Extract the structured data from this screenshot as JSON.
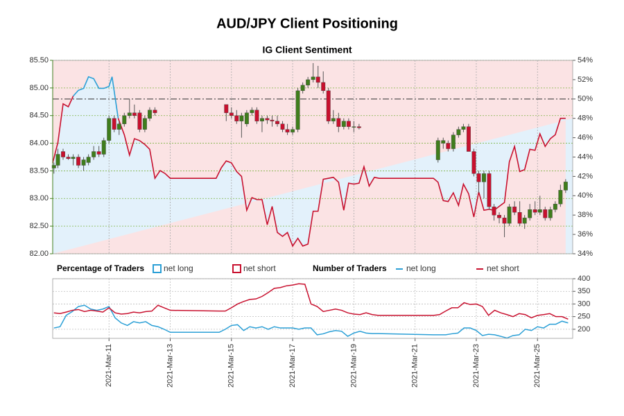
{
  "chart_data": [
    {
      "type": "candlestick",
      "title": "AUD/JPY Client Positioning",
      "subtitle": "IG Client Sentiment",
      "xlim": [
        9.16,
        26.15
      ],
      "ylim": [
        82,
        85.5
      ],
      "yticks": [
        {
          "value": 82,
          "label": "82.00"
        },
        {
          "value": 82.5,
          "label": "82.50"
        },
        {
          "value": 83,
          "label": "83.00"
        },
        {
          "value": 83.5,
          "label": "83.50"
        },
        {
          "value": 84,
          "label": "84.00"
        },
        {
          "value": 84.5,
          "label": "84.50"
        },
        {
          "value": 85,
          "label": "85.00"
        },
        {
          "value": 85.5,
          "label": "85.50"
        }
      ],
      "y2lim": [
        34,
        54
      ],
      "y2ticks": [
        {
          "value": 34,
          "label": "34%"
        },
        {
          "value": 36,
          "label": "36%"
        },
        {
          "value": 38,
          "label": "38%"
        },
        {
          "value": 40,
          "label": "40%"
        },
        {
          "value": 42,
          "label": "42%"
        },
        {
          "value": 44,
          "label": "44%"
        },
        {
          "value": 46,
          "label": "46%"
        },
        {
          "value": 48,
          "label": "48%"
        },
        {
          "value": 50,
          "label": "50%"
        },
        {
          "value": 52,
          "label": "52%"
        },
        {
          "value": 54,
          "label": "54%"
        }
      ],
      "reference_line": 50,
      "grid": true,
      "up_color": "#3f7d1c",
      "down_color": "#c8102e",
      "candle_x": [
        9.2,
        9.33,
        9.5,
        9.67,
        9.83,
        10.0,
        10.17,
        10.33,
        10.5,
        10.67,
        10.83,
        11.0,
        11.17,
        11.33,
        11.5,
        11.67,
        11.83,
        12.0,
        12.17,
        12.33,
        12.5,
        14.83,
        15.0,
        15.17,
        15.33,
        15.5,
        15.67,
        15.83,
        16.0,
        16.17,
        16.33,
        16.5,
        16.67,
        16.83,
        17.0,
        17.17,
        17.33,
        17.5,
        17.67,
        17.83,
        18.0,
        18.17,
        18.33,
        18.5,
        18.67,
        18.83,
        19.0,
        19.17,
        21.75,
        21.92,
        22.08,
        22.25,
        22.42,
        22.58,
        22.75,
        22.92,
        23.08,
        23.25,
        23.42,
        23.58,
        23.75,
        23.92,
        24.08,
        24.25,
        24.42,
        24.58,
        24.75,
        24.92,
        25.08,
        25.25,
        25.42,
        25.58,
        25.75,
        25.92
      ],
      "ohlc": [
        [
          83.55,
          83.65,
          83.45,
          83.6
        ],
        [
          83.6,
          83.9,
          83.55,
          83.8
        ],
        [
          83.85,
          83.9,
          83.7,
          83.75
        ],
        [
          83.75,
          83.8,
          83.7,
          83.72
        ],
        [
          83.72,
          83.8,
          83.6,
          83.75
        ],
        [
          83.75,
          83.8,
          83.55,
          83.6
        ],
        [
          83.6,
          83.75,
          83.5,
          83.7
        ],
        [
          83.65,
          83.8,
          83.6,
          83.75
        ],
        [
          83.75,
          83.95,
          83.7,
          83.85
        ],
        [
          83.85,
          83.95,
          83.75,
          83.8
        ],
        [
          83.8,
          84.1,
          83.75,
          84.05
        ],
        [
          84.05,
          84.5,
          84.0,
          84.45
        ],
        [
          84.45,
          84.5,
          84.2,
          84.25
        ],
        [
          84.25,
          84.4,
          84.15,
          84.35
        ],
        [
          84.35,
          84.55,
          84.3,
          84.5
        ],
        [
          84.5,
          84.8,
          84.45,
          84.55
        ],
        [
          84.55,
          84.7,
          84.45,
          84.5
        ],
        [
          84.55,
          84.6,
          84.2,
          84.25
        ],
        [
          84.25,
          84.5,
          84.2,
          84.45
        ],
        [
          84.45,
          84.65,
          84.4,
          84.6
        ],
        [
          84.6,
          84.65,
          84.5,
          84.55
        ],
        [
          84.7,
          84.7,
          84.4,
          84.55
        ],
        [
          84.55,
          84.65,
          84.45,
          84.5
        ],
        [
          84.5,
          84.6,
          84.35,
          84.4
        ],
        [
          84.4,
          84.55,
          84.1,
          84.5
        ],
        [
          84.35,
          84.6,
          84.3,
          84.55
        ],
        [
          84.55,
          84.65,
          84.5,
          84.6
        ],
        [
          84.6,
          84.65,
          84.35,
          84.4
        ],
        [
          84.4,
          84.5,
          84.2,
          84.45
        ],
        [
          84.45,
          84.5,
          84.35,
          84.42
        ],
        [
          84.42,
          84.5,
          84.3,
          84.4
        ],
        [
          84.4,
          84.5,
          84.3,
          84.35
        ],
        [
          84.35,
          84.4,
          84.2,
          84.25
        ],
        [
          84.25,
          84.35,
          84.15,
          84.2
        ],
        [
          84.2,
          84.3,
          84.15,
          84.25
        ],
        [
          84.25,
          85.0,
          84.2,
          84.95
        ],
        [
          84.95,
          85.1,
          84.9,
          85.05
        ],
        [
          85.05,
          85.2,
          85.0,
          85.15
        ],
        [
          85.15,
          85.45,
          85.1,
          85.2
        ],
        [
          85.2,
          85.4,
          85.0,
          85.1
        ],
        [
          85.1,
          85.3,
          84.9,
          84.95
        ],
        [
          84.95,
          85.0,
          84.35,
          84.4
        ],
        [
          84.4,
          84.6,
          84.35,
          84.45
        ],
        [
          84.45,
          84.55,
          84.2,
          84.3
        ],
        [
          84.3,
          84.45,
          84.25,
          84.4
        ],
        [
          84.4,
          84.45,
          84.25,
          84.3
        ],
        [
          84.3,
          84.4,
          84.2,
          84.3
        ],
        [
          84.3,
          84.35,
          84.25,
          84.28
        ],
        [
          83.7,
          84.1,
          83.65,
          84.05
        ],
        [
          84.0,
          84.1,
          83.9,
          84.05
        ],
        [
          84.0,
          84.05,
          83.85,
          83.9
        ],
        [
          83.9,
          84.2,
          83.85,
          84.15
        ],
        [
          84.15,
          84.3,
          84.1,
          84.25
        ],
        [
          84.25,
          84.35,
          84.2,
          84.3
        ],
        [
          84.3,
          84.35,
          83.85,
          83.85
        ],
        [
          83.85,
          83.9,
          83.4,
          83.45
        ],
        [
          83.45,
          83.5,
          83.1,
          83.3
        ],
        [
          83.3,
          83.5,
          83.0,
          83.45
        ],
        [
          83.45,
          83.5,
          82.8,
          82.85
        ],
        [
          82.85,
          82.9,
          82.6,
          82.7
        ],
        [
          82.7,
          82.75,
          82.55,
          82.65
        ],
        [
          82.65,
          82.7,
          82.3,
          82.55
        ],
        [
          82.55,
          82.9,
          82.5,
          82.85
        ],
        [
          82.85,
          82.95,
          82.7,
          82.75
        ],
        [
          82.75,
          82.95,
          82.5,
          82.55
        ],
        [
          82.55,
          82.7,
          82.45,
          82.65
        ],
        [
          82.65,
          82.9,
          82.6,
          82.8
        ],
        [
          82.8,
          82.95,
          82.7,
          82.75
        ],
        [
          82.75,
          83.05,
          82.7,
          82.8
        ],
        [
          82.8,
          82.85,
          82.6,
          82.65
        ],
        [
          82.65,
          82.85,
          82.6,
          82.8
        ],
        [
          82.8,
          82.95,
          82.75,
          82.9
        ],
        [
          82.9,
          83.25,
          82.85,
          83.15
        ],
        [
          83.15,
          83.35,
          83.1,
          83.3
        ]
      ],
      "legend_title": "Percentage of Traders",
      "area_legend": [
        {
          "name": "net long",
          "color": "#2a9fd6",
          "fill": "#e3f1fb"
        },
        {
          "name": "net short",
          "color": "#c8102e",
          "fill": "#fbe3e4"
        }
      ],
      "sentiment_x": [
        9.16,
        9.33,
        9.5,
        9.67,
        9.83,
        10.0,
        10.17,
        10.33,
        10.5,
        10.67,
        10.83,
        11.0,
        11.1,
        11.3,
        11.5,
        11.67,
        11.83,
        12.0,
        12.17,
        12.33,
        12.5,
        12.67,
        12.83,
        13.0,
        14.5,
        14.67,
        14.83,
        15.0,
        15.17,
        15.33,
        15.5,
        15.67,
        15.83,
        16.0,
        16.17,
        16.33,
        16.5,
        16.67,
        16.83,
        17.0,
        17.17,
        17.33,
        17.5,
        17.67,
        17.83,
        18.0,
        18.33,
        18.5,
        18.67,
        18.83,
        19.0,
        19.17,
        19.33,
        19.5,
        19.67,
        19.83,
        21.6,
        21.75,
        21.92,
        22.08,
        22.25,
        22.42,
        22.58,
        22.75,
        22.92,
        23.08,
        23.25,
        23.42,
        23.58,
        23.75,
        23.92,
        24.08,
        24.25,
        24.42,
        24.58,
        24.75,
        24.92,
        25.08,
        25.25,
        25.42,
        25.58,
        25.75,
        25.92
      ],
      "sentiment_values": [
        43.4,
        45.5,
        49.5,
        49.2,
        50.3,
        50.9,
        51.1,
        52.3,
        52.1,
        51.1,
        51.1,
        51.3,
        52.3,
        48.0,
        46.3,
        44.2,
        45.9,
        45.7,
        45.3,
        44.8,
        41.8,
        42.6,
        42.3,
        41.8,
        41.8,
        42.9,
        43.6,
        43.4,
        42.5,
        42.0,
        38.5,
        39.8,
        39.6,
        39.6,
        37.0,
        38.9,
        36.2,
        35.8,
        36.2,
        34.8,
        35.6,
        34.8,
        35.0,
        38.4,
        38.4,
        41.7,
        41.9,
        41.4,
        38.5,
        41.3,
        41.2,
        41.3,
        43.0,
        41.0,
        41.9,
        41.8,
        41.8,
        41.4,
        39.5,
        39.4,
        40.3,
        39.0,
        41.2,
        40.2,
        37.8,
        40.4,
        38.5,
        38.6,
        38.5,
        38.9,
        39.3,
        43.5,
        45.1,
        42.5,
        42.7,
        44.8,
        44.7,
        46.4,
        45.1,
        45.9,
        46.3,
        48.0,
        48.0
      ]
    },
    {
      "type": "line",
      "legend_title": "Number of Traders",
      "xlim": [
        9.16,
        26.15
      ],
      "xticks": [
        {
          "value": 11,
          "label": "2021-Mar-11"
        },
        {
          "value": 13,
          "label": "2021-Mar-13"
        },
        {
          "value": 15,
          "label": "2021-Mar-15"
        },
        {
          "value": 17,
          "label": "2021-Mar-17"
        },
        {
          "value": 19,
          "label": "2021-Mar-19"
        },
        {
          "value": 21,
          "label": "2021-Mar-21"
        },
        {
          "value": 23,
          "label": "2021-Mar-23"
        },
        {
          "value": 25,
          "label": "2021-Mar-25"
        }
      ],
      "ylim": [
        164,
        400
      ],
      "yticks": [
        200,
        250,
        300,
        350,
        400
      ],
      "grid": true,
      "x": [
        9.2,
        9.4,
        9.6,
        9.8,
        10.0,
        10.2,
        10.4,
        10.6,
        10.8,
        11.0,
        11.2,
        11.4,
        11.6,
        11.8,
        12.0,
        12.2,
        12.4,
        12.6,
        12.8,
        13.0,
        14.6,
        14.8,
        15.0,
        15.2,
        15.4,
        15.6,
        15.8,
        16.0,
        16.2,
        16.4,
        16.6,
        16.8,
        17.0,
        17.2,
        17.4,
        17.6,
        17.8,
        18.0,
        18.2,
        18.4,
        18.6,
        18.8,
        19.0,
        19.2,
        19.4,
        19.6,
        19.8,
        21.6,
        21.8,
        22.0,
        22.2,
        22.4,
        22.6,
        22.8,
        23.0,
        23.2,
        23.4,
        23.6,
        23.8,
        24.0,
        24.2,
        24.4,
        24.6,
        24.8,
        25.0,
        25.2,
        25.4,
        25.6,
        25.8,
        26.0
      ],
      "series": [
        {
          "name": "net long",
          "color": "#2a9fd6",
          "values": [
            205,
            210,
            255,
            270,
            290,
            295,
            280,
            275,
            280,
            290,
            245,
            225,
            215,
            230,
            225,
            230,
            215,
            210,
            200,
            188,
            188,
            200,
            215,
            218,
            195,
            210,
            205,
            210,
            200,
            210,
            205,
            205,
            205,
            200,
            205,
            205,
            178,
            182,
            190,
            195,
            192,
            172,
            185,
            192,
            185,
            183,
            183,
            178,
            178,
            178,
            182,
            185,
            205,
            205,
            195,
            175,
            180,
            178,
            172,
            165,
            175,
            178,
            200,
            195,
            210,
            205,
            220,
            220,
            232,
            225
          ]
        },
        {
          "name": "net short",
          "color": "#c8102e",
          "values": [
            265,
            262,
            268,
            275,
            278,
            270,
            275,
            272,
            268,
            285,
            265,
            260,
            262,
            268,
            265,
            270,
            272,
            295,
            285,
            275,
            272,
            272,
            285,
            300,
            310,
            318,
            320,
            330,
            345,
            362,
            365,
            372,
            375,
            380,
            378,
            300,
            290,
            270,
            275,
            280,
            275,
            265,
            260,
            258,
            265,
            258,
            255,
            255,
            258,
            272,
            285,
            285,
            305,
            298,
            300,
            290,
            255,
            275,
            265,
            258,
            250,
            262,
            258,
            245,
            255,
            258,
            262,
            250,
            250,
            240
          ]
        }
      ]
    }
  ]
}
